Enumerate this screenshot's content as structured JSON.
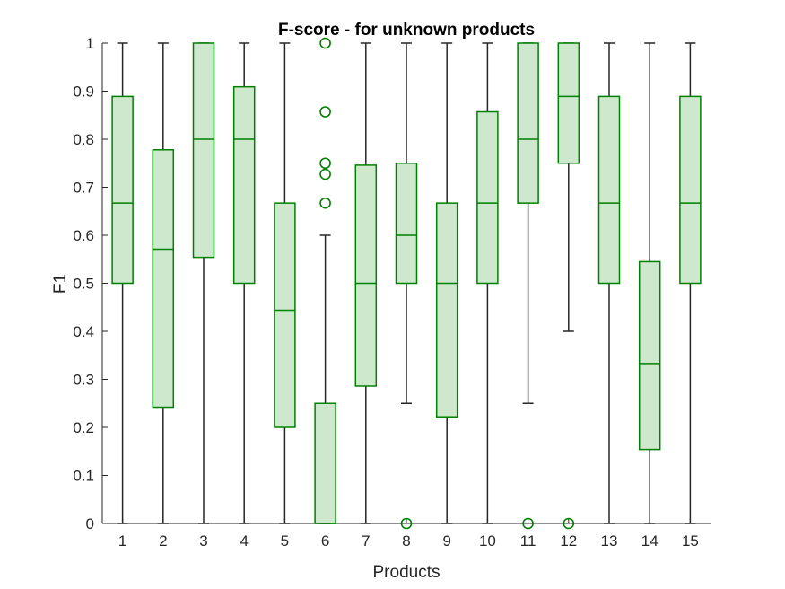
{
  "chart_data": {
    "type": "boxplot",
    "title": "F-score - for unknown products",
    "xlabel": "Products",
    "ylabel": "F1",
    "ylim": [
      0,
      1
    ],
    "yticks": [
      0,
      0.1,
      0.2,
      0.3,
      0.4,
      0.5,
      0.6,
      0.7,
      0.8,
      0.9,
      1
    ],
    "ytick_labels": [
      "0",
      "0.1",
      "0.2",
      "0.3",
      "0.4",
      "0.5",
      "0.6",
      "0.7",
      "0.8",
      "0.9",
      "1"
    ],
    "categories": [
      "1",
      "2",
      "3",
      "4",
      "5",
      "6",
      "7",
      "8",
      "9",
      "10",
      "11",
      "12",
      "13",
      "14",
      "15"
    ],
    "grid": false,
    "colors": {
      "box_edge": "#008000",
      "box_fill": "#cde8cd",
      "whisker": "#262626",
      "axis": "#262626"
    },
    "boxes": [
      {
        "category": "1",
        "min": 0,
        "q1": 0.5,
        "median": 0.667,
        "q3": 0.889,
        "max": 1,
        "outliers": []
      },
      {
        "category": "2",
        "min": 0,
        "q1": 0.242,
        "median": 0.571,
        "q3": 0.778,
        "max": 1,
        "outliers": []
      },
      {
        "category": "3",
        "min": 0,
        "q1": 0.554,
        "median": 0.8,
        "q3": 1,
        "max": 1,
        "outliers": []
      },
      {
        "category": "4",
        "min": 0,
        "q1": 0.5,
        "median": 0.8,
        "q3": 0.909,
        "max": 1,
        "outliers": []
      },
      {
        "category": "5",
        "min": 0,
        "q1": 0.2,
        "median": 0.444,
        "q3": 0.667,
        "max": 1,
        "outliers": []
      },
      {
        "category": "6",
        "min": 0,
        "q1": 0,
        "median": 0,
        "q3": 0.25,
        "max": 0.6,
        "outliers": [
          0.667,
          0.727,
          0.75,
          0.857,
          1
        ]
      },
      {
        "category": "7",
        "min": 0,
        "q1": 0.286,
        "median": 0.5,
        "q3": 0.746,
        "max": 1,
        "outliers": []
      },
      {
        "category": "8",
        "min": 0.25,
        "q1": 0.5,
        "median": 0.6,
        "q3": 0.75,
        "max": 1,
        "outliers": [
          0
        ]
      },
      {
        "category": "9",
        "min": 0,
        "q1": 0.222,
        "median": 0.5,
        "q3": 0.667,
        "max": 1,
        "outliers": []
      },
      {
        "category": "10",
        "min": 0,
        "q1": 0.5,
        "median": 0.667,
        "q3": 0.857,
        "max": 1,
        "outliers": []
      },
      {
        "category": "11",
        "min": 0.25,
        "q1": 0.667,
        "median": 0.8,
        "q3": 1,
        "max": 1,
        "outliers": [
          0
        ]
      },
      {
        "category": "12",
        "min": 0.4,
        "q1": 0.75,
        "median": 0.889,
        "q3": 1,
        "max": 1,
        "outliers": [
          0
        ]
      },
      {
        "category": "13",
        "min": 0,
        "q1": 0.5,
        "median": 0.667,
        "q3": 0.889,
        "max": 1,
        "outliers": []
      },
      {
        "category": "14",
        "min": 0,
        "q1": 0.154,
        "median": 0.333,
        "q3": 0.545,
        "max": 1,
        "outliers": []
      },
      {
        "category": "15",
        "min": 0,
        "q1": 0.5,
        "median": 0.667,
        "q3": 0.889,
        "max": 1,
        "outliers": []
      }
    ]
  }
}
